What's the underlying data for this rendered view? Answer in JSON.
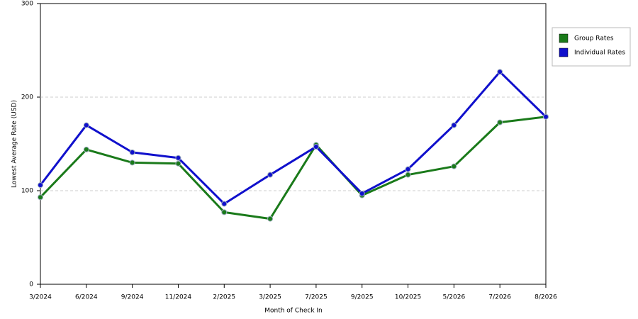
{
  "chart_data": {
    "type": "line",
    "x_label": "Month of Check In",
    "y_label": "Lowest Average Rate (USD)",
    "categories": [
      "3/2024",
      "6/2024",
      "9/2024",
      "11/2024",
      "2/2025",
      "3/2025",
      "7/2025",
      "9/2025",
      "10/2025",
      "5/2026",
      "7/2026",
      "8/2026"
    ],
    "series": [
      {
        "name": "Group Rates",
        "color": "#1a7a1a",
        "values": [
          93,
          144,
          130,
          129,
          77,
          70,
          149,
          95,
          117,
          126,
          173,
          179
        ]
      },
      {
        "name": "Individual Rates",
        "color": "#1010cc",
        "values": [
          106,
          170,
          141,
          135,
          86,
          117,
          147,
          97,
          123,
          170,
          227,
          179
        ]
      }
    ],
    "ylim": [
      0,
      300
    ],
    "yticks": [
      0,
      100,
      200,
      300
    ],
    "grid": true,
    "legend": "right"
  }
}
